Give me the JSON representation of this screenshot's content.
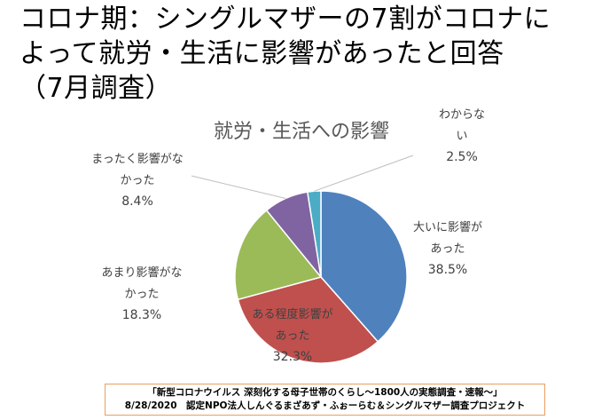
{
  "headline": {
    "line1": "コロナ期：シングルマザーの7割がコロナに",
    "line2": "よって就労・生活に影響があったと回答",
    "line3": "（7月調査）"
  },
  "chart_data": {
    "type": "pie",
    "title": "就労・生活への影響",
    "unit": "%",
    "slices": [
      {
        "label": [
          "大いに影響が",
          "あった"
        ],
        "value": 38.5,
        "display": "38.5%",
        "color": "#4f81bd"
      },
      {
        "label": [
          "ある程度影響が",
          "あった"
        ],
        "value": 32.3,
        "display": "32.3%",
        "color": "#c0504d"
      },
      {
        "label": [
          "あまり影響がな",
          "かった"
        ],
        "value": 18.3,
        "display": "18.3%",
        "color": "#9bbb59"
      },
      {
        "label": [
          "まったく影響がな",
          "かった"
        ],
        "value": 8.4,
        "display": "8.4%",
        "color": "#8064a2"
      },
      {
        "label": [
          "わからな",
          "い"
        ],
        "value": 2.5,
        "display": "2.5%",
        "color": "#4bacc6"
      }
    ]
  },
  "source": {
    "line1": "「新型コロナウイルス 深刻化する母子世帯のくらし～1800人の実態調査・速報～」",
    "line2": "8/28/2020　認定NPO法人しんぐるまざあず・ふぉーらむ＆シングルマザー調査プロジェクト"
  }
}
